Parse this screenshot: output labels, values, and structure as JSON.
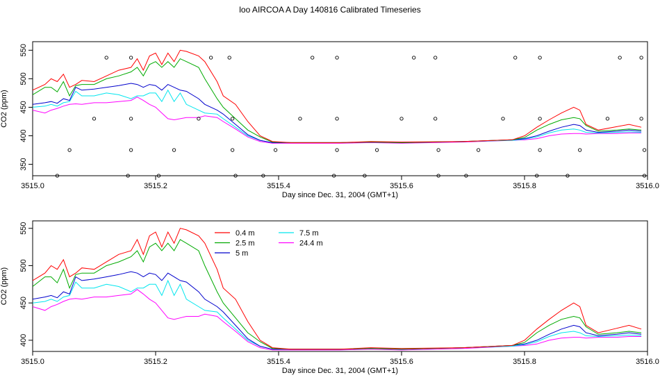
{
  "page": {
    "title": "loo AIRCOA A  Day 140816  Calibrated Timeseries"
  },
  "colors": {
    "0.4 m": "#ff0000",
    "2.5 m": "#00aa00",
    "5 m": "#0000cc",
    "7.5 m": "#00e5ee",
    "24.4 m": "#ff00ff"
  },
  "chart_data": [
    {
      "type": "line",
      "title": "",
      "xlabel": "Day since Dec. 31, 2004 (GMT+1)",
      "ylabel": "CO2 (ppm)",
      "xlim": [
        3515.0,
        3516.0
      ],
      "ylim": [
        330,
        565
      ],
      "xticks": [
        3515.0,
        3515.2,
        3515.4,
        3515.6,
        3515.8,
        3516.0
      ],
      "xtick_labels": [
        "3515.0",
        "3515.2",
        "3515.4",
        "3515.6",
        "3515.8",
        "3516.0"
      ],
      "yticks": [
        350,
        400,
        450,
        500,
        550
      ],
      "ytick_labels": [
        "350",
        "400",
        "450",
        "500",
        "550"
      ],
      "grid": false,
      "markers": {
        "name": "cycle markers",
        "points": [
          [
            3515.04,
            330
          ],
          [
            3515.06,
            375
          ],
          [
            3515.1,
            430
          ],
          [
            3515.12,
            537
          ],
          [
            3515.155,
            330
          ],
          [
            3515.16,
            375
          ],
          [
            3515.16,
            430
          ],
          [
            3515.16,
            537
          ],
          [
            3515.205,
            330
          ],
          [
            3515.23,
            375
          ],
          [
            3515.27,
            430
          ],
          [
            3515.29,
            537
          ],
          [
            3515.32,
            537
          ],
          [
            3515.325,
            430
          ],
          [
            3515.325,
            375
          ],
          [
            3515.33,
            330
          ],
          [
            3515.375,
            330
          ],
          [
            3515.395,
            375
          ],
          [
            3515.435,
            430
          ],
          [
            3515.455,
            537
          ],
          [
            3515.49,
            330
          ],
          [
            3515.495,
            375
          ],
          [
            3515.495,
            430
          ],
          [
            3515.495,
            537
          ],
          [
            3515.54,
            330
          ],
          [
            3515.56,
            375
          ],
          [
            3515.6,
            430
          ],
          [
            3515.62,
            537
          ],
          [
            3515.655,
            430
          ],
          [
            3515.655,
            537
          ],
          [
            3515.66,
            375
          ],
          [
            3515.66,
            330
          ],
          [
            3515.705,
            330
          ],
          [
            3515.725,
            375
          ],
          [
            3515.765,
            430
          ],
          [
            3515.785,
            537
          ],
          [
            3515.82,
            330
          ],
          [
            3515.825,
            375
          ],
          [
            3515.825,
            430
          ],
          [
            3515.825,
            537
          ],
          [
            3515.87,
            330
          ],
          [
            3515.89,
            375
          ],
          [
            3515.935,
            430
          ],
          [
            3515.955,
            537
          ],
          [
            3515.99,
            537
          ],
          [
            3515.99,
            430
          ],
          [
            3515.995,
            375
          ],
          [
            3515.995,
            330
          ]
        ]
      }
    },
    {
      "type": "line",
      "title": "",
      "xlabel": "Day since Dec. 31, 2004 (GMT+1)",
      "ylabel": "CO2 (ppm)",
      "xlim": [
        3515.0,
        3516.0
      ],
      "ylim": [
        385,
        560
      ],
      "xticks": [
        3515.0,
        3515.2,
        3515.4,
        3515.6,
        3515.8,
        3516.0
      ],
      "xtick_labels": [
        "3515.0",
        "3515.2",
        "3515.4",
        "3515.6",
        "3515.8",
        "3516.0"
      ],
      "yticks": [
        400,
        450,
        500,
        550
      ],
      "ytick_labels": [
        "400",
        "450",
        "500",
        "550"
      ],
      "grid": false,
      "legend": {
        "placement": "top-center",
        "entries": [
          "0.4 m",
          "2.5 m",
          "5 m",
          "7.5 m",
          "24.4 m"
        ]
      }
    }
  ],
  "series_keypoints": {
    "0.4 m": [
      [
        3515.0,
        480
      ],
      [
        3515.02,
        490
      ],
      [
        3515.03,
        500
      ],
      [
        3515.04,
        495
      ],
      [
        3515.05,
        508
      ],
      [
        3515.06,
        485
      ],
      [
        3515.07,
        490
      ],
      [
        3515.08,
        497
      ],
      [
        3515.1,
        495
      ],
      [
        3515.12,
        505
      ],
      [
        3515.14,
        515
      ],
      [
        3515.16,
        520
      ],
      [
        3515.17,
        535
      ],
      [
        3515.18,
        515
      ],
      [
        3515.19,
        540
      ],
      [
        3515.2,
        545
      ],
      [
        3515.21,
        525
      ],
      [
        3515.22,
        545
      ],
      [
        3515.23,
        530
      ],
      [
        3515.24,
        550
      ],
      [
        3515.25,
        548
      ],
      [
        3515.27,
        540
      ],
      [
        3515.28,
        530
      ],
      [
        3515.3,
        495
      ],
      [
        3515.31,
        470
      ],
      [
        3515.33,
        455
      ],
      [
        3515.35,
        425
      ],
      [
        3515.37,
        400
      ],
      [
        3515.39,
        390
      ],
      [
        3515.42,
        388
      ],
      [
        3515.5,
        388
      ],
      [
        3515.55,
        390
      ],
      [
        3515.6,
        389
      ],
      [
        3515.7,
        390
      ],
      [
        3515.78,
        393
      ],
      [
        3515.8,
        400
      ],
      [
        3515.82,
        415
      ],
      [
        3515.84,
        428
      ],
      [
        3515.86,
        440
      ],
      [
        3515.88,
        450
      ],
      [
        3515.89,
        445
      ],
      [
        3515.9,
        420
      ],
      [
        3515.92,
        410
      ],
      [
        3515.95,
        416
      ],
      [
        3515.97,
        420
      ],
      [
        3515.99,
        415
      ]
    ],
    "2.5 m": [
      [
        3515.0,
        472
      ],
      [
        3515.02,
        485
      ],
      [
        3515.03,
        485
      ],
      [
        3515.04,
        477
      ],
      [
        3515.05,
        495
      ],
      [
        3515.06,
        470
      ],
      [
        3515.07,
        488
      ],
      [
        3515.08,
        490
      ],
      [
        3515.1,
        490
      ],
      [
        3515.12,
        500
      ],
      [
        3515.14,
        505
      ],
      [
        3515.16,
        512
      ],
      [
        3515.17,
        520
      ],
      [
        3515.18,
        505
      ],
      [
        3515.19,
        525
      ],
      [
        3515.2,
        530
      ],
      [
        3515.21,
        520
      ],
      [
        3515.22,
        530
      ],
      [
        3515.23,
        520
      ],
      [
        3515.24,
        535
      ],
      [
        3515.25,
        530
      ],
      [
        3515.27,
        520
      ],
      [
        3515.28,
        500
      ],
      [
        3515.3,
        465
      ],
      [
        3515.31,
        450
      ],
      [
        3515.33,
        430
      ],
      [
        3515.35,
        410
      ],
      [
        3515.37,
        398
      ],
      [
        3515.39,
        389
      ],
      [
        3515.42,
        388
      ],
      [
        3515.5,
        388
      ],
      [
        3515.55,
        389
      ],
      [
        3515.6,
        388
      ],
      [
        3515.7,
        390
      ],
      [
        3515.78,
        393
      ],
      [
        3515.8,
        397
      ],
      [
        3515.82,
        410
      ],
      [
        3515.84,
        420
      ],
      [
        3515.86,
        428
      ],
      [
        3515.88,
        432
      ],
      [
        3515.89,
        430
      ],
      [
        3515.9,
        418
      ],
      [
        3515.92,
        408
      ],
      [
        3515.95,
        410
      ],
      [
        3515.97,
        412
      ],
      [
        3515.99,
        410
      ]
    ],
    "5 m": [
      [
        3515.0,
        455
      ],
      [
        3515.02,
        458
      ],
      [
        3515.03,
        460
      ],
      [
        3515.04,
        457
      ],
      [
        3515.05,
        465
      ],
      [
        3515.06,
        462
      ],
      [
        3515.07,
        485
      ],
      [
        3515.08,
        480
      ],
      [
        3515.1,
        482
      ],
      [
        3515.12,
        485
      ],
      [
        3515.14,
        488
      ],
      [
        3515.16,
        492
      ],
      [
        3515.17,
        490
      ],
      [
        3515.18,
        485
      ],
      [
        3515.19,
        490
      ],
      [
        3515.2,
        488
      ],
      [
        3515.21,
        480
      ],
      [
        3515.22,
        490
      ],
      [
        3515.23,
        485
      ],
      [
        3515.24,
        480
      ],
      [
        3515.25,
        478
      ],
      [
        3515.27,
        465
      ],
      [
        3515.28,
        455
      ],
      [
        3515.3,
        445
      ],
      [
        3515.31,
        438
      ],
      [
        3515.33,
        420
      ],
      [
        3515.35,
        402
      ],
      [
        3515.37,
        392
      ],
      [
        3515.39,
        388
      ],
      [
        3515.42,
        388
      ],
      [
        3515.5,
        388
      ],
      [
        3515.55,
        389
      ],
      [
        3515.6,
        388
      ],
      [
        3515.7,
        390
      ],
      [
        3515.78,
        393
      ],
      [
        3515.8,
        395
      ],
      [
        3515.82,
        400
      ],
      [
        3515.84,
        408
      ],
      [
        3515.86,
        415
      ],
      [
        3515.88,
        420
      ],
      [
        3515.89,
        418
      ],
      [
        3515.9,
        410
      ],
      [
        3515.92,
        406
      ],
      [
        3515.95,
        408
      ],
      [
        3515.97,
        410
      ],
      [
        3515.99,
        408
      ]
    ],
    "7.5 m": [
      [
        3515.0,
        450
      ],
      [
        3515.02,
        452
      ],
      [
        3515.03,
        455
      ],
      [
        3515.04,
        452
      ],
      [
        3515.05,
        458
      ],
      [
        3515.06,
        460
      ],
      [
        3515.07,
        478
      ],
      [
        3515.08,
        470
      ],
      [
        3515.1,
        470
      ],
      [
        3515.12,
        475
      ],
      [
        3515.14,
        472
      ],
      [
        3515.16,
        465
      ],
      [
        3515.17,
        470
      ],
      [
        3515.18,
        470
      ],
      [
        3515.19,
        475
      ],
      [
        3515.2,
        475
      ],
      [
        3515.21,
        460
      ],
      [
        3515.22,
        480
      ],
      [
        3515.23,
        460
      ],
      [
        3515.24,
        475
      ],
      [
        3515.25,
        455
      ],
      [
        3515.27,
        445
      ],
      [
        3515.28,
        440
      ],
      [
        3515.3,
        438
      ],
      [
        3515.31,
        430
      ],
      [
        3515.33,
        415
      ],
      [
        3515.35,
        400
      ],
      [
        3515.37,
        392
      ],
      [
        3515.39,
        388
      ],
      [
        3515.42,
        388
      ],
      [
        3515.5,
        388
      ],
      [
        3515.55,
        389
      ],
      [
        3515.6,
        388
      ],
      [
        3515.7,
        390
      ],
      [
        3515.78,
        392
      ],
      [
        3515.8,
        394
      ],
      [
        3515.82,
        398
      ],
      [
        3515.84,
        405
      ],
      [
        3515.86,
        410
      ],
      [
        3515.88,
        412
      ],
      [
        3515.89,
        410
      ],
      [
        3515.9,
        406
      ],
      [
        3515.92,
        405
      ],
      [
        3515.95,
        406
      ],
      [
        3515.97,
        407
      ],
      [
        3515.99,
        406
      ]
    ],
    "24.4 m": [
      [
        3515.0,
        445
      ],
      [
        3515.02,
        440
      ],
      [
        3515.03,
        445
      ],
      [
        3515.04,
        448
      ],
      [
        3515.05,
        452
      ],
      [
        3515.06,
        455
      ],
      [
        3515.07,
        456
      ],
      [
        3515.08,
        455
      ],
      [
        3515.1,
        458
      ],
      [
        3515.12,
        458
      ],
      [
        3515.14,
        460
      ],
      [
        3515.16,
        462
      ],
      [
        3515.17,
        468
      ],
      [
        3515.18,
        462
      ],
      [
        3515.19,
        455
      ],
      [
        3515.2,
        450
      ],
      [
        3515.21,
        440
      ],
      [
        3515.22,
        430
      ],
      [
        3515.23,
        428
      ],
      [
        3515.24,
        430
      ],
      [
        3515.25,
        432
      ],
      [
        3515.27,
        432
      ],
      [
        3515.28,
        435
      ],
      [
        3515.3,
        432
      ],
      [
        3515.31,
        425
      ],
      [
        3515.33,
        412
      ],
      [
        3515.35,
        398
      ],
      [
        3515.37,
        390
      ],
      [
        3515.39,
        387
      ],
      [
        3515.42,
        387
      ],
      [
        3515.5,
        387
      ],
      [
        3515.55,
        388
      ],
      [
        3515.6,
        387
      ],
      [
        3515.7,
        389
      ],
      [
        3515.78,
        392
      ],
      [
        3515.8,
        393
      ],
      [
        3515.82,
        395
      ],
      [
        3515.84,
        400
      ],
      [
        3515.86,
        403
      ],
      [
        3515.88,
        404
      ],
      [
        3515.89,
        404
      ],
      [
        3515.9,
        403
      ],
      [
        3515.92,
        404
      ],
      [
        3515.95,
        404
      ],
      [
        3515.97,
        405
      ],
      [
        3515.99,
        405
      ]
    ]
  }
}
